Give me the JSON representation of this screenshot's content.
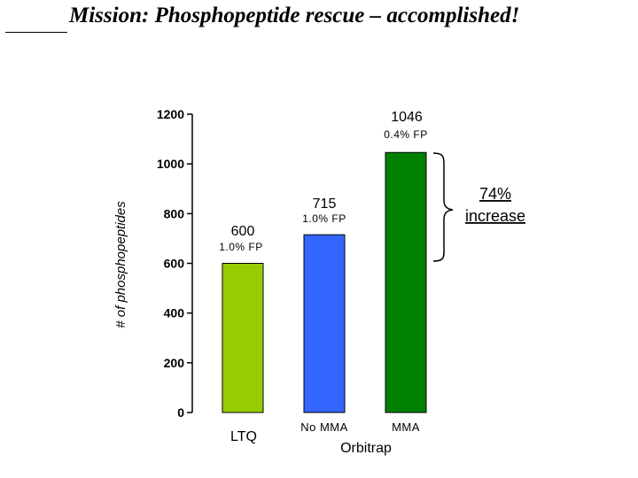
{
  "slide": {
    "title": "Mission: Phosphopeptide rescue – accomplished!"
  },
  "chart_data": {
    "type": "bar",
    "ylabel": "# of phosphopeptides",
    "ylim": [
      0,
      1200
    ],
    "yticks": [
      0,
      200,
      400,
      600,
      800,
      1000,
      1200
    ],
    "categories": [
      "LTQ",
      "No MMA",
      "MMA"
    ],
    "group_label": "Orbitrap",
    "values": [
      600,
      715,
      1046
    ],
    "value_labels": [
      "600",
      "715",
      "1046"
    ],
    "fp_labels": [
      "1.0% FP",
      "1.0% FP",
      "0.4% FP"
    ],
    "colors": [
      "#99cc00",
      "#3366ff",
      "#008000"
    ],
    "annotation": {
      "text_line1": "74%",
      "text_line2": "increase"
    }
  }
}
